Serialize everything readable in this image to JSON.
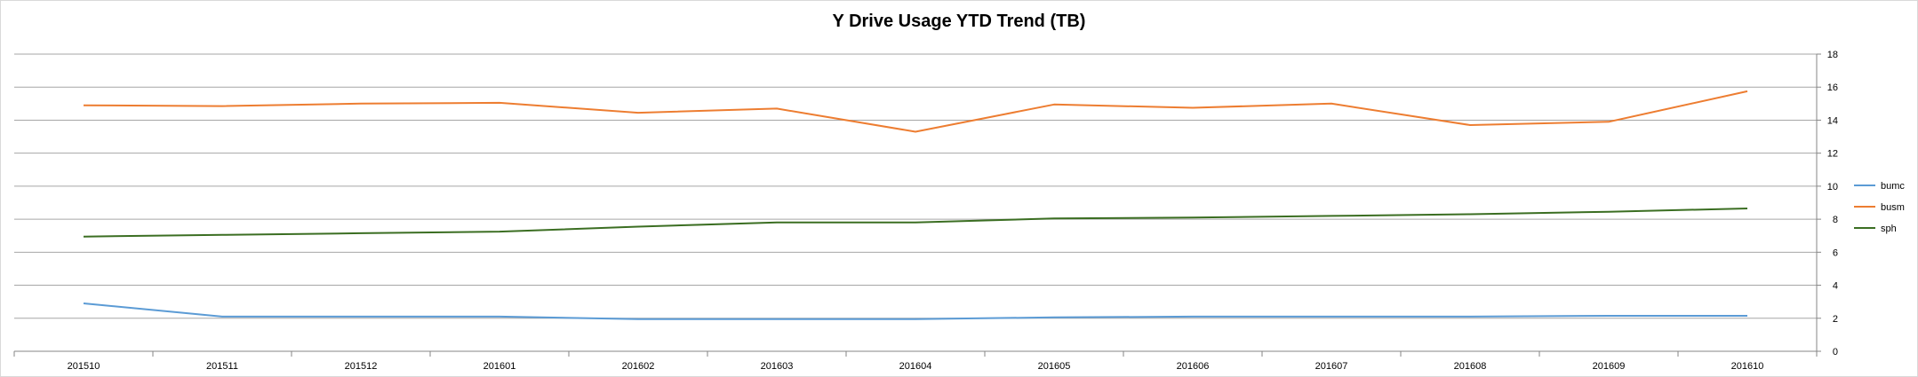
{
  "chart_data": {
    "type": "line",
    "title": "Y Drive Usage YTD Trend (TB)",
    "xlabel": "",
    "ylabel": "",
    "categories": [
      "201510",
      "201511",
      "201512",
      "201601",
      "201602",
      "201603",
      "201604",
      "201605",
      "201606",
      "201607",
      "201608",
      "201609",
      "201610"
    ],
    "ylim": [
      0,
      18
    ],
    "yticks": [
      0,
      2,
      4,
      6,
      8,
      10,
      12,
      14,
      16,
      18
    ],
    "y_axis_side": "right",
    "grid": true,
    "legend": "right",
    "series": [
      {
        "name": "bumc",
        "color": "#5b9bd5",
        "values": [
          2.9,
          2.1,
          2.1,
          2.1,
          1.95,
          1.95,
          1.95,
          2.05,
          2.1,
          2.1,
          2.1,
          2.15,
          2.15
        ]
      },
      {
        "name": "busm",
        "color": "#ed7d31",
        "values": [
          14.9,
          14.85,
          15.0,
          15.05,
          14.45,
          14.7,
          13.3,
          14.95,
          14.75,
          15.0,
          13.7,
          13.9,
          15.75
        ]
      },
      {
        "name": "sph",
        "color": "#3b6e22",
        "values": [
          6.95,
          7.05,
          7.15,
          7.25,
          7.55,
          7.8,
          7.8,
          8.05,
          8.1,
          8.2,
          8.3,
          8.45,
          8.65
        ]
      }
    ]
  }
}
